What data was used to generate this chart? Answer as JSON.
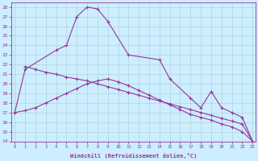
{
  "xlabel": "Windchill (Refroidissement éolien,°C)",
  "background_color": "#cceeff",
  "grid_color": "#aacccc",
  "line_color": "#993399",
  "curve1_x": [
    0,
    1,
    2,
    3,
    4,
    5,
    6,
    7,
    8,
    9,
    10,
    11,
    12,
    13,
    14,
    15,
    16,
    17,
    18,
    19,
    20,
    21,
    22,
    23
  ],
  "curve1_y": [
    17.0,
    17.2,
    17.5,
    18.0,
    18.5,
    19.0,
    19.5,
    20.0,
    20.3,
    20.5,
    20.2,
    19.8,
    19.3,
    18.8,
    18.3,
    17.8,
    17.3,
    16.8,
    16.5,
    16.2,
    15.8,
    15.5,
    15.0,
    14.0
  ],
  "curve2_x": [
    0,
    1,
    4,
    5,
    6,
    7,
    8,
    9,
    11,
    14,
    15,
    17,
    18,
    19,
    20,
    21,
    22,
    23
  ],
  "curve2_y": [
    17.0,
    21.5,
    23.5,
    24.0,
    27.0,
    28.0,
    27.8,
    26.5,
    23.0,
    22.5,
    20.5,
    18.5,
    17.5,
    19.2,
    17.5,
    17.0,
    16.5,
    14.0
  ],
  "curve3_x": [
    1,
    2,
    3,
    4,
    5,
    6,
    7,
    8,
    9,
    10,
    11,
    12,
    13,
    14,
    15,
    16,
    17,
    18,
    19,
    20,
    21,
    22,
    23
  ],
  "curve3_y": [
    21.8,
    21.5,
    21.2,
    21.0,
    20.7,
    20.5,
    20.3,
    20.0,
    19.7,
    19.4,
    19.1,
    18.8,
    18.5,
    18.2,
    17.9,
    17.6,
    17.3,
    17.0,
    16.7,
    16.4,
    16.1,
    15.8,
    14.0
  ],
  "ylim": [
    14,
    28
  ],
  "xlim": [
    -0.3,
    23.3
  ],
  "yticks": [
    14,
    15,
    16,
    17,
    18,
    19,
    20,
    21,
    22,
    23,
    24,
    25,
    26,
    27,
    28
  ],
  "xticks": [
    0,
    1,
    2,
    3,
    4,
    5,
    6,
    7,
    8,
    9,
    10,
    11,
    12,
    13,
    14,
    15,
    16,
    17,
    18,
    19,
    20,
    21,
    22,
    23
  ]
}
